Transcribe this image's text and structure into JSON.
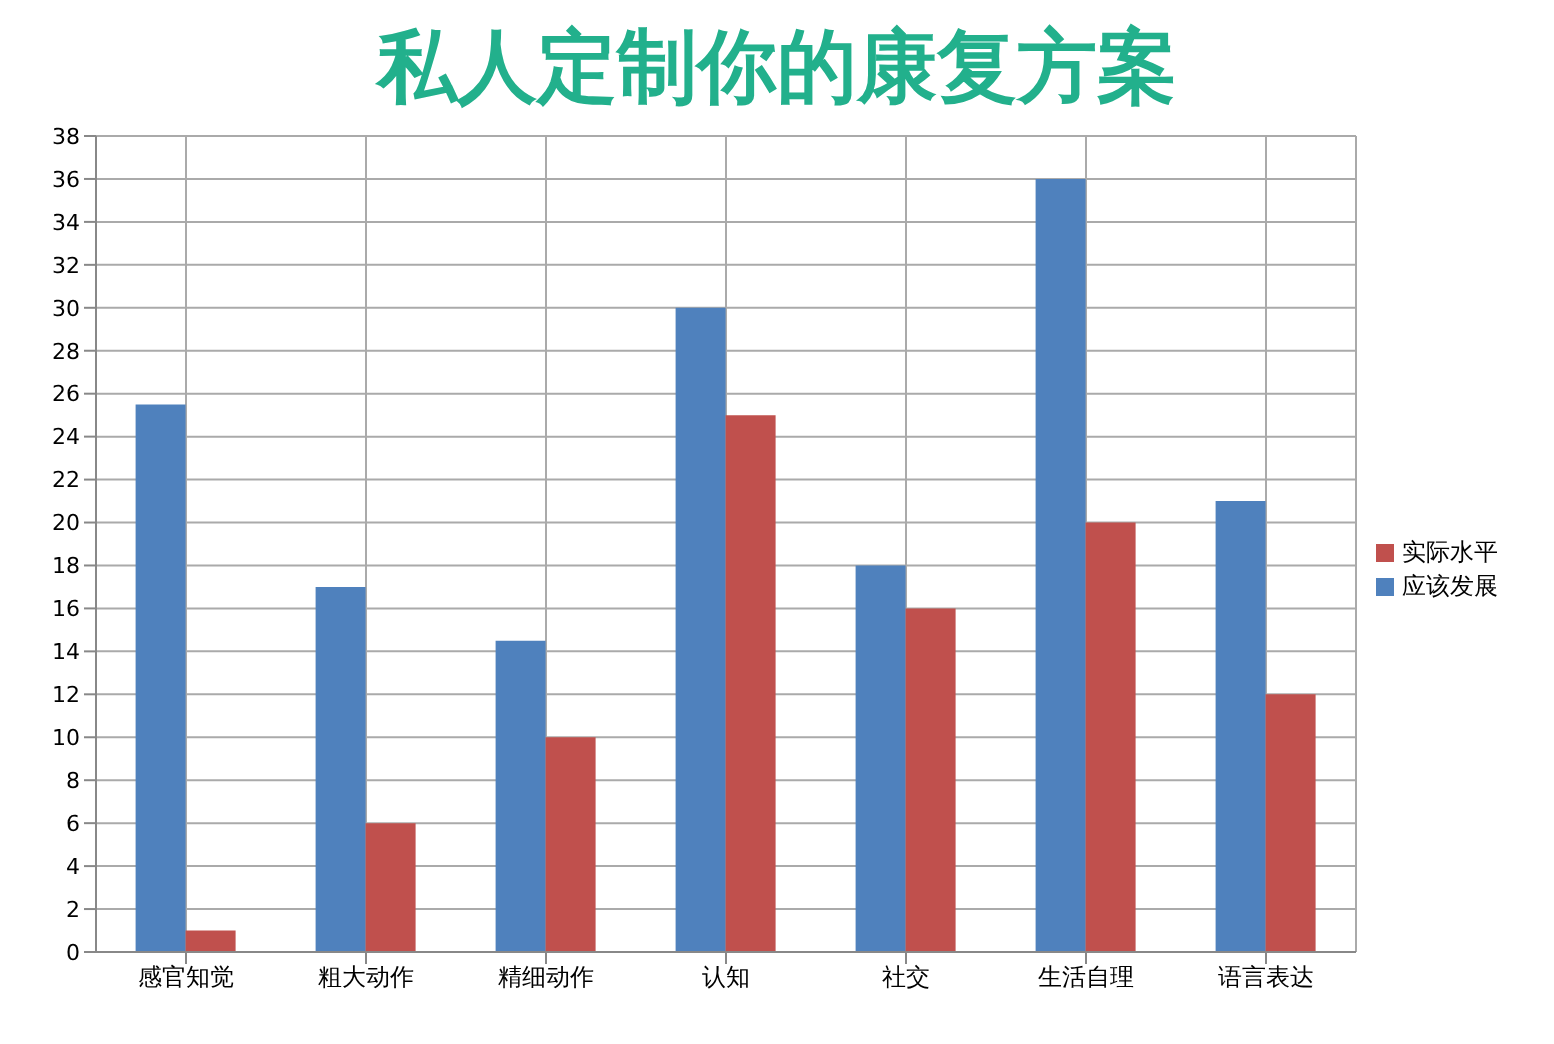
{
  "chart_data": {
    "type": "bar",
    "title": "私人定制你的康复方案",
    "categories": [
      "感官知觉",
      "粗大动作",
      "精细动作",
      "认知",
      "社交",
      "生活自理",
      "语言表达"
    ],
    "series": [
      {
        "name": "应该发展",
        "color": "#4f81bd",
        "values": [
          25.5,
          17,
          14.5,
          30,
          18,
          36,
          21
        ]
      },
      {
        "name": "实际水平",
        "color": "#c0504d",
        "values": [
          1,
          6,
          10,
          25,
          16,
          20,
          12
        ]
      }
    ],
    "ylim": [
      0,
      38
    ],
    "yticks": [
      0,
      2,
      4,
      6,
      8,
      10,
      12,
      14,
      16,
      18,
      20,
      22,
      24,
      26,
      28,
      30,
      32,
      34,
      36,
      38
    ],
    "grid": true,
    "legend": "right"
  }
}
